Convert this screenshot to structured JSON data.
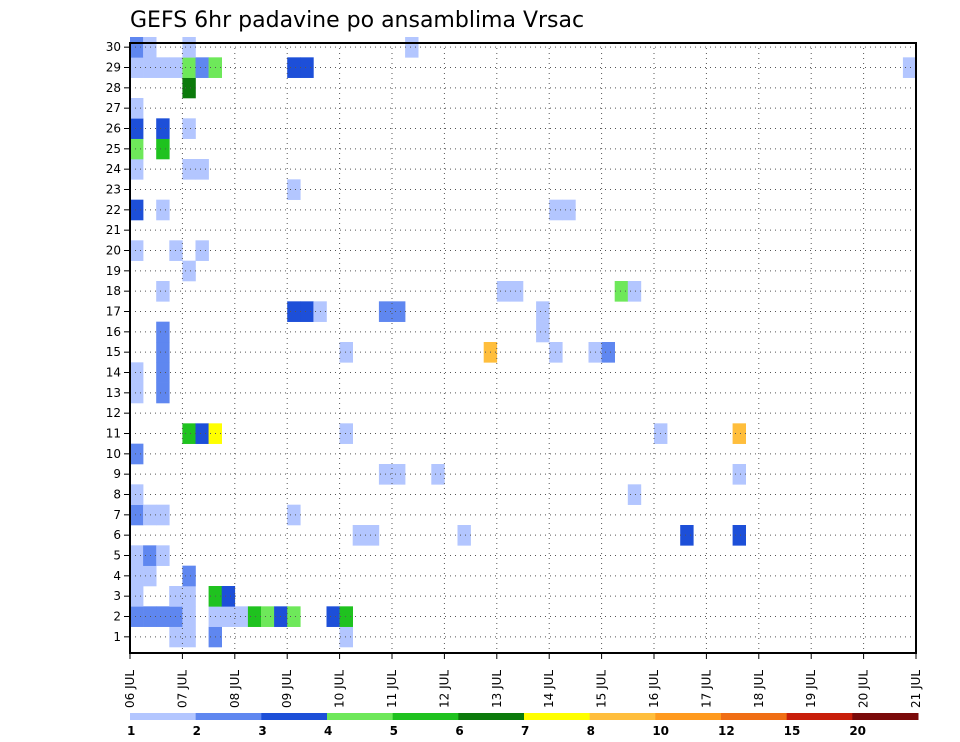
{
  "chart_data": {
    "type": "heatmap",
    "title": "GEFS 6hr padavine po ansamblima Vrsac",
    "xlabel": "",
    "ylabel": "",
    "grid": true,
    "legend": "bottom",
    "x_ticks": [
      "06 JUL",
      "07 JUL",
      "08 JUL",
      "09 JUL",
      "10 JUL",
      "11 JUL",
      "12 JUL",
      "13 JUL",
      "14 JUL",
      "15 JUL",
      "16 JUL",
      "17 JUL",
      "18 JUL",
      "19 JUL",
      "20 JUL",
      "21 JUL"
    ],
    "y_ticks": [
      "1",
      "2",
      "3",
      "4",
      "5",
      "6",
      "7",
      "8",
      "9",
      "10",
      "11",
      "12",
      "13",
      "14",
      "15",
      "16",
      "17",
      "18",
      "19",
      "20",
      "21",
      "22",
      "23",
      "24",
      "25",
      "26",
      "27",
      "28",
      "29",
      "30"
    ],
    "x_range_steps": [
      0,
      60
    ],
    "y_range": [
      0,
      30
    ],
    "colorbar": {
      "labels": [
        "1",
        "2",
        "3",
        "4",
        "5",
        "6",
        "7",
        "8",
        "10",
        "12",
        "15",
        "20"
      ],
      "colors": [
        "#b3c6ff",
        "#5f87f0",
        "#1d4fd8",
        "#6ee85a",
        "#1fc21f",
        "#0b7a0b",
        "#ffff00",
        "#ffbe3c",
        "#ff9a1e",
        "#f06e14",
        "#c81e0a",
        "#7a0a0a"
      ]
    },
    "cells": [
      {
        "m": 1,
        "t": [
          4,
          5,
          7,
          17
        ],
        "v": [
          1,
          1,
          2,
          1
        ]
      },
      {
        "m": 2,
        "t": [
          1,
          2,
          3,
          4,
          5,
          7,
          8,
          9,
          10,
          11,
          12,
          13,
          16,
          17
        ],
        "v": [
          2,
          2,
          2,
          2,
          1,
          1,
          1,
          1,
          5,
          4,
          3,
          4,
          3,
          5
        ]
      },
      {
        "m": 3,
        "t": [
          1,
          4,
          4,
          5,
          7,
          8
        ],
        "v": [
          1,
          1,
          1,
          1,
          5,
          3
        ]
      },
      {
        "m": 4,
        "t": [
          1,
          2,
          5
        ],
        "v": [
          1,
          1,
          2
        ]
      },
      {
        "m": 5,
        "t": [
          1,
          2,
          3
        ],
        "v": [
          1,
          2,
          1
        ]
      },
      {
        "m": 6,
        "t": [
          18,
          19,
          26,
          43,
          47
        ],
        "v": [
          1,
          1,
          1,
          3,
          3
        ]
      },
      {
        "m": 7,
        "t": [
          1,
          2,
          3,
          13
        ],
        "v": [
          2,
          1,
          1,
          1
        ]
      },
      {
        "m": 8,
        "t": [
          1,
          39
        ],
        "v": [
          1,
          1
        ]
      },
      {
        "m": 9,
        "t": [
          20,
          21,
          24,
          47
        ],
        "v": [
          1,
          1,
          1,
          1
        ]
      },
      {
        "m": 10,
        "t": [
          1
        ],
        "v": [
          2
        ]
      },
      {
        "m": 11,
        "t": [
          5,
          6,
          7,
          17,
          41,
          47
        ],
        "v": [
          5,
          3,
          7,
          1,
          1,
          8
        ]
      },
      {
        "m": 13,
        "t": [
          1,
          3
        ],
        "v": [
          1,
          2
        ]
      },
      {
        "m": 14,
        "t": [
          1,
          3
        ],
        "v": [
          1,
          2
        ]
      },
      {
        "m": 15,
        "t": [
          3,
          17,
          28,
          33,
          36,
          37
        ],
        "v": [
          2,
          1,
          8,
          1,
          1,
          2
        ]
      },
      {
        "m": 16,
        "t": [
          3,
          32
        ],
        "v": [
          2,
          1
        ]
      },
      {
        "m": 17,
        "t": [
          13,
          14,
          15,
          20,
          21,
          32
        ],
        "v": [
          3,
          3,
          1,
          2,
          2,
          1
        ]
      },
      {
        "m": 18,
        "t": [
          3,
          29,
          30,
          38,
          39
        ],
        "v": [
          1,
          1,
          1,
          4,
          1
        ]
      },
      {
        "m": 19,
        "t": [
          5
        ],
        "v": [
          1
        ]
      },
      {
        "m": 20,
        "t": [
          1,
          4,
          6
        ],
        "v": [
          1,
          1,
          1
        ]
      },
      {
        "m": 22,
        "t": [
          1,
          3,
          33,
          34
        ],
        "v": [
          3,
          1,
          1,
          1
        ]
      },
      {
        "m": 23,
        "t": [
          13
        ],
        "v": [
          1
        ]
      },
      {
        "m": 24,
        "t": [
          1,
          5,
          6
        ],
        "v": [
          1,
          1,
          1
        ]
      },
      {
        "m": 25,
        "t": [
          1,
          3
        ],
        "v": [
          4,
          5
        ]
      },
      {
        "m": 26,
        "t": [
          1,
          3,
          5
        ],
        "v": [
          3,
          3,
          1
        ]
      },
      {
        "m": 27,
        "t": [
          1
        ],
        "v": [
          1
        ]
      },
      {
        "m": 28,
        "t": [
          5
        ],
        "v": [
          6
        ]
      },
      {
        "m": 29,
        "t": [
          1,
          2,
          3,
          4,
          5,
          6,
          7,
          13,
          14,
          60
        ],
        "v": [
          1,
          1,
          1,
          1,
          4,
          2,
          4,
          3,
          3,
          1
        ]
      },
      {
        "m": 30,
        "t": [
          1,
          2,
          5,
          22
        ],
        "v": [
          2,
          1,
          1,
          1
        ]
      }
    ]
  }
}
